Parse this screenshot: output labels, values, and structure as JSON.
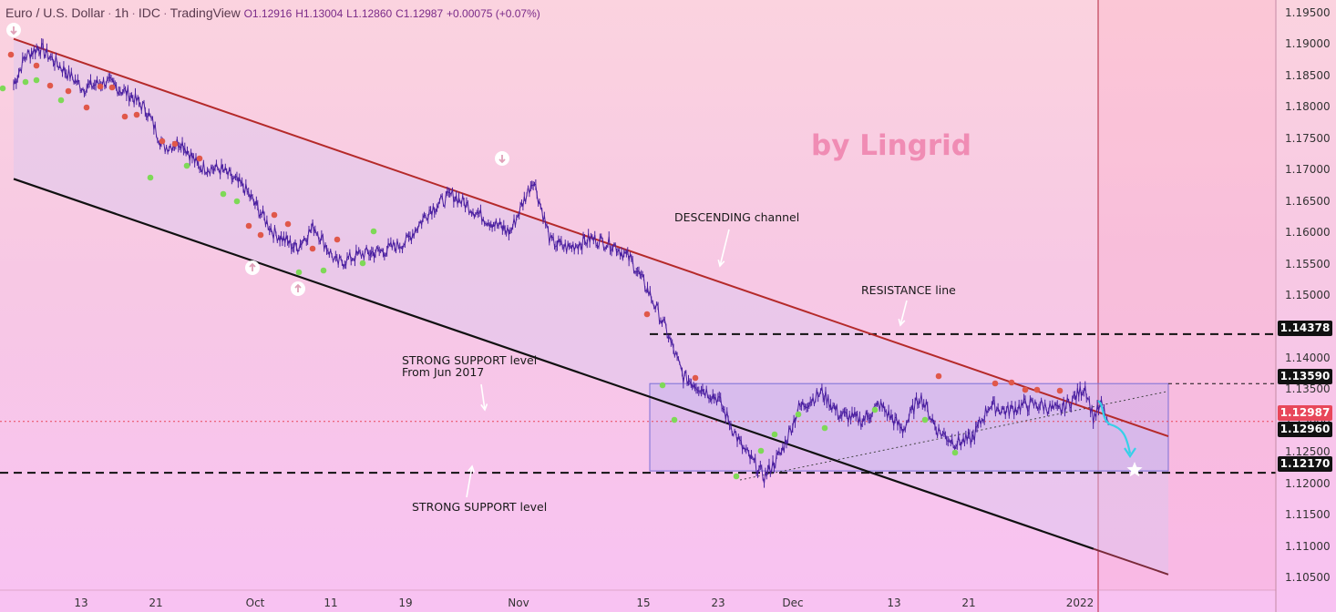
{
  "header": {
    "symbol": "Euro / U.S. Dollar",
    "timeframe": "1h",
    "source": "IDC",
    "platform": "TradingView",
    "open": "O1.12916",
    "high": "H1.13004",
    "low": "L1.12860",
    "close": "C1.12987",
    "change": "+0.00075 (+0.07%)"
  },
  "watermark": "by Lingrid",
  "colors": {
    "channel_top": "#b52a2a",
    "channel_bottom": "#111111",
    "candles": "#4a1fa0",
    "swing_high_dot": "#e0584a",
    "swing_low_dot": "#7ed957",
    "projection_arrow": "#36d0e8",
    "range_box": "#7b6fd6",
    "price_tag_red": "#e8475a",
    "price_tag_black": "#111111"
  },
  "annotations": {
    "descending_channel": "DESCENDING channel",
    "resistance_line": "RESISTANCE line",
    "strong_support_1_line1": "STRONG SUPPORT level",
    "strong_support_1_line2": "From Jun 2017",
    "strong_support_2": "STRONG SUPPORT level"
  },
  "chart_data": {
    "type": "line",
    "title": "Euro / U.S. Dollar · 1h · IDC",
    "xlabel": "",
    "ylabel": "",
    "x_ticks": [
      "13",
      "21",
      "Oct",
      "11",
      "19",
      "Nov",
      "15",
      "23",
      "Dec",
      "13",
      "21",
      "2022"
    ],
    "y_ticks": [
      "1.19500",
      "1.19000",
      "1.18500",
      "1.18000",
      "1.17500",
      "1.17000",
      "1.16500",
      "1.16000",
      "1.15500",
      "1.15000",
      "1.14500",
      "1.14000",
      "1.13500",
      "1.13000",
      "1.12500",
      "1.12000",
      "1.11500",
      "1.11000",
      "1.10500"
    ],
    "ylim": [
      1.103,
      1.197
    ],
    "grid": false,
    "price_tags": {
      "resistance": "1.14378",
      "range_top": "1.13590",
      "current": "1.12987",
      "mid": "1.12960",
      "support": "1.12170"
    },
    "levels": [
      {
        "name": "RESISTANCE line",
        "value": 1.14378
      },
      {
        "name": "STRONG SUPPORT level",
        "value": 1.1217
      },
      {
        "name": "range top",
        "value": 1.1359
      }
    ],
    "channel_lines": [
      {
        "name": "DESCENDING channel top",
        "x": [
          0.0,
          1.0
        ],
        "y": [
          1.1908,
          1.1275
        ]
      },
      {
        "name": "DESCENDING channel bottom",
        "x": [
          0.0,
          1.0
        ],
        "y": [
          1.1685,
          1.1055
        ]
      }
    ],
    "series": [
      {
        "values_x": [
          0.0,
          0.01,
          0.022,
          0.04,
          0.06,
          0.08,
          0.1,
          0.115,
          0.13,
          0.145,
          0.16,
          0.18,
          0.2,
          0.225,
          0.245,
          0.26,
          0.28,
          0.3,
          0.32,
          0.34,
          0.36,
          0.38,
          0.41,
          0.43,
          0.45,
          0.465,
          0.48,
          0.5,
          0.52,
          0.535,
          0.55,
          0.565,
          0.58,
          0.61,
          0.63,
          0.65,
          0.665,
          0.68,
          0.7,
          0.715,
          0.735,
          0.75,
          0.77,
          0.785,
          0.8,
          0.815,
          0.83,
          0.845,
          0.86,
          0.875,
          0.89,
          0.905,
          0.918,
          0.928,
          0.935,
          0.942,
          0.948
        ],
        "values_y": [
          1.1835,
          1.188,
          1.1895,
          1.1865,
          1.183,
          1.184,
          1.182,
          1.1795,
          1.1735,
          1.1745,
          1.1705,
          1.17,
          1.167,
          1.16,
          1.1575,
          1.161,
          1.155,
          1.1565,
          1.157,
          1.1585,
          1.1635,
          1.166,
          1.162,
          1.16,
          1.1685,
          1.1585,
          1.1575,
          1.159,
          1.158,
          1.1555,
          1.1505,
          1.1445,
          1.137,
          1.1335,
          1.126,
          1.121,
          1.125,
          1.132,
          1.1345,
          1.131,
          1.13,
          1.1325,
          1.1285,
          1.134,
          1.1285,
          1.1265,
          1.127,
          1.1325,
          1.1315,
          1.1325,
          1.1325,
          1.1315,
          1.1335,
          1.1355,
          1.1305,
          1.1325,
          1.1295
        ]
      }
    ]
  }
}
